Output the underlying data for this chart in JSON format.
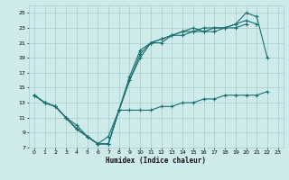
{
  "xlabel": "Humidex (Indice chaleur)",
  "bg_color": "#ceeaea",
  "grid_color": "#aacccc",
  "line_color": "#1a7070",
  "xlim": [
    -0.5,
    23.5
  ],
  "ylim": [
    7,
    26
  ],
  "xticks": [
    0,
    1,
    2,
    3,
    4,
    5,
    6,
    7,
    8,
    9,
    10,
    11,
    12,
    13,
    14,
    15,
    16,
    17,
    18,
    19,
    20,
    21,
    22,
    23
  ],
  "yticks": [
    7,
    9,
    11,
    13,
    15,
    17,
    19,
    21,
    23,
    25
  ],
  "series": [
    {
      "x": [
        0,
        1,
        2,
        3,
        4,
        5,
        6,
        7,
        8,
        9,
        10,
        11,
        12,
        13,
        14,
        15,
        16,
        17,
        18,
        19,
        20,
        21,
        22
      ],
      "y": [
        14,
        13,
        12.5,
        11,
        9.5,
        8.5,
        7.5,
        7.5,
        12,
        16,
        19,
        21,
        21.5,
        22,
        22.5,
        23,
        22.5,
        23,
        23,
        23.5,
        25,
        24.5,
        19
      ]
    },
    {
      "x": [
        0,
        1,
        2,
        3,
        4,
        5,
        6,
        7,
        8,
        9,
        10,
        11,
        12,
        13,
        14,
        15,
        16,
        17,
        18,
        19,
        20,
        21
      ],
      "y": [
        14,
        13,
        12.5,
        11,
        9.5,
        8.5,
        7.5,
        7.5,
        12,
        16.5,
        20,
        21,
        21.5,
        22,
        22.5,
        22.5,
        23,
        23,
        23,
        23.5,
        24,
        23.5
      ]
    },
    {
      "x": [
        0,
        1,
        2,
        3,
        4,
        5,
        6,
        7,
        8,
        9,
        10,
        11,
        12,
        13,
        14,
        15,
        16,
        17,
        18,
        19,
        20
      ],
      "y": [
        14,
        13,
        12.5,
        11,
        9.5,
        8.5,
        7.5,
        7.5,
        12,
        16,
        19.5,
        21,
        21,
        22,
        22,
        22.5,
        22.5,
        22.5,
        23,
        23,
        23.5
      ]
    },
    {
      "x": [
        0,
        1,
        2,
        3,
        4,
        5,
        6,
        7,
        8,
        9,
        10,
        11,
        12,
        13,
        14,
        15,
        16,
        17,
        18,
        19,
        20,
        21,
        22
      ],
      "y": [
        14,
        13,
        12.5,
        11,
        10,
        8.5,
        7.5,
        8.5,
        12,
        12,
        12,
        12,
        12.5,
        12.5,
        13,
        13,
        13.5,
        13.5,
        14,
        14,
        14,
        14,
        14.5
      ]
    }
  ]
}
